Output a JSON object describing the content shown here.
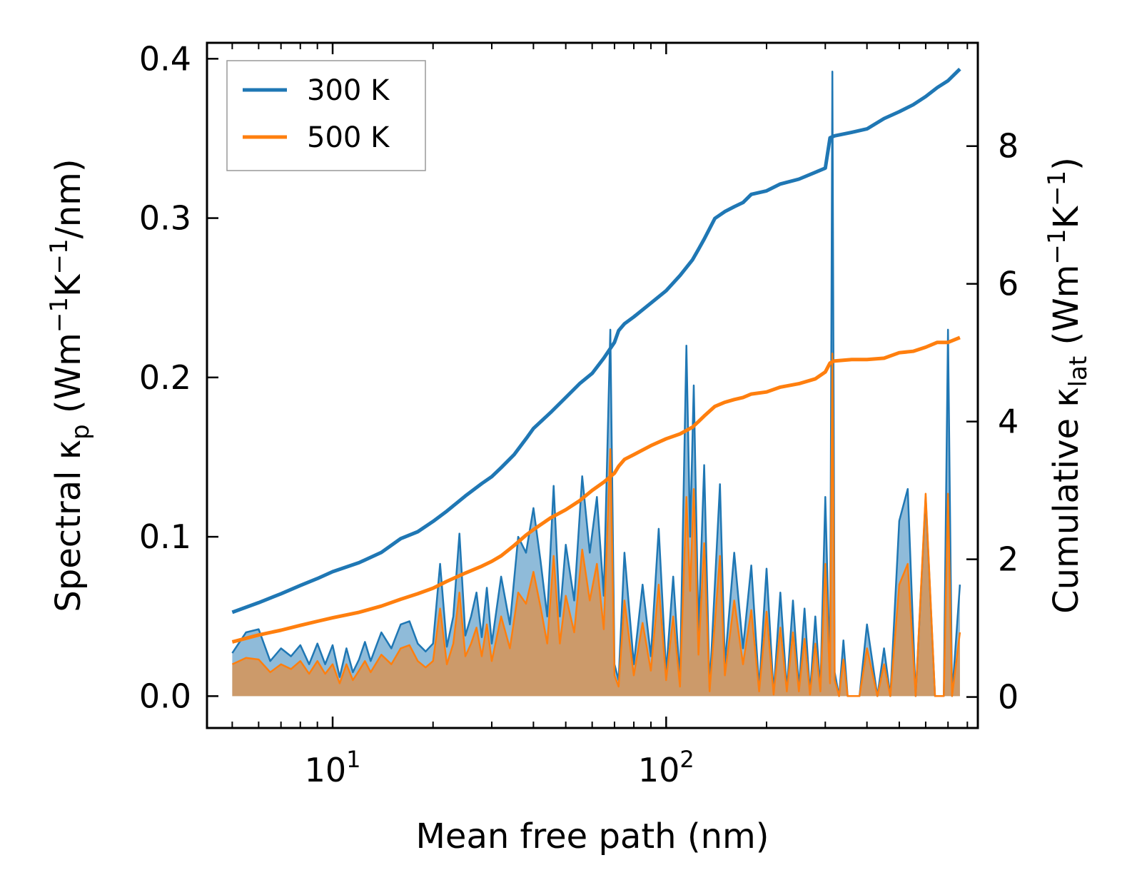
{
  "chart_data": {
    "type": "line",
    "xlabel": "Mean free path (nm)",
    "ylabel_left": {
      "prefix": "Spectral κ",
      "sub": "p",
      "suffix": " (Wm",
      "sup1": "−1",
      "mid": "K",
      "sup2": "−1",
      "end": "/nm)"
    },
    "ylabel_right": {
      "prefix": "Cumulative κ",
      "sub": "lat",
      "suffix": " (Wm",
      "sup1": "−1",
      "mid": "K",
      "sup2": "−1",
      "end": ")"
    },
    "xscale": "log",
    "xlim": [
      4.2,
      860
    ],
    "ylim_left": [
      -0.02,
      0.41
    ],
    "ylim_right": [
      -0.45,
      9.5
    ],
    "x_ticks": [
      {
        "value": 10,
        "base": "10",
        "exp": "1"
      },
      {
        "value": 100,
        "base": "10",
        "exp": "2"
      }
    ],
    "y_left_ticks": [
      {
        "value": 0.0,
        "label": "0.0"
      },
      {
        "value": 0.1,
        "label": "0.1"
      },
      {
        "value": 0.2,
        "label": "0.2"
      },
      {
        "value": 0.3,
        "label": "0.3"
      },
      {
        "value": 0.4,
        "label": "0.4"
      }
    ],
    "y_right_ticks": [
      {
        "value": 0,
        "label": "0"
      },
      {
        "value": 2,
        "label": "2"
      },
      {
        "value": 4,
        "label": "4"
      },
      {
        "value": 6,
        "label": "6"
      },
      {
        "value": 8,
        "label": "8"
      }
    ],
    "legend": {
      "position": "top-left",
      "entries": [
        "300 K",
        "500 K"
      ]
    },
    "colors": {
      "t300": "#1f77b4",
      "t500": "#ff7f0e"
    },
    "spectral_x": [
      5,
      5.5,
      6,
      6.5,
      7,
      7.5,
      8,
      8.5,
      9,
      9.5,
      10,
      10.5,
      11,
      11.5,
      12,
      12.5,
      13,
      14,
      15,
      16,
      17,
      18,
      19,
      20,
      21,
      22,
      23,
      24,
      25,
      26,
      27,
      28,
      29,
      30,
      32,
      34,
      36,
      38,
      40,
      42,
      44,
      46,
      48,
      50,
      53,
      56,
      59,
      62,
      65,
      68,
      70,
      72,
      75,
      80,
      85,
      90,
      95,
      100,
      105,
      110,
      115,
      118,
      121,
      125,
      130,
      135,
      140,
      145,
      150,
      160,
      170,
      180,
      190,
      200,
      210,
      220,
      230,
      240,
      250,
      260,
      270,
      280,
      290,
      300,
      310,
      315,
      320,
      330,
      340,
      350,
      360,
      380,
      400,
      430,
      450,
      470,
      500,
      530,
      560,
      600,
      640,
      680,
      700,
      720,
      760
    ],
    "series": [
      {
        "name": "300 K",
        "spectral": [
          0.027,
          0.04,
          0.042,
          0.022,
          0.03,
          0.025,
          0.032,
          0.02,
          0.033,
          0.02,
          0.032,
          0.012,
          0.03,
          0.015,
          0.023,
          0.034,
          0.022,
          0.04,
          0.03,
          0.045,
          0.047,
          0.033,
          0.028,
          0.033,
          0.083,
          0.031,
          0.05,
          0.102,
          0.038,
          0.05,
          0.065,
          0.037,
          0.068,
          0.033,
          0.075,
          0.045,
          0.1,
          0.09,
          0.118,
          0.085,
          0.05,
          0.132,
          0.05,
          0.095,
          0.06,
          0.138,
          0.09,
          0.125,
          0.063,
          0.23,
          0.02,
          0.01,
          0.09,
          0.02,
          0.07,
          0.025,
          0.105,
          0.015,
          0.075,
          0.01,
          0.22,
          0.1,
          0.195,
          0.04,
          0.145,
          0.005,
          0.07,
          0.133,
          0.02,
          0.09,
          0.03,
          0.082,
          0.005,
          0.08,
          0.002,
          0.065,
          0.004,
          0.06,
          0.005,
          0.055,
          0.002,
          0.05,
          0.004,
          0.125,
          0.012,
          0.392,
          0.015,
          0.0,
          0.035,
          0.0,
          0.0,
          0.0,
          0.045,
          0.0,
          0.03,
          0.0,
          0.11,
          0.13,
          0.0,
          0.125,
          0.0,
          0.0,
          0.23,
          0.0,
          0.07
        ],
        "cum_x": [
          5,
          6,
          7,
          8,
          9,
          10,
          12,
          14,
          16,
          18,
          20,
          22,
          25,
          28,
          30,
          32,
          35,
          38,
          40,
          45,
          50,
          55,
          60,
          65,
          70,
          72,
          75,
          80,
          90,
          100,
          110,
          120,
          125,
          130,
          140,
          150,
          160,
          170,
          180,
          200,
          220,
          250,
          280,
          300,
          310,
          320,
          360,
          400,
          450,
          500,
          550,
          600,
          650,
          700,
          760
        ],
        "cumulative": [
          1.23,
          1.37,
          1.5,
          1.62,
          1.72,
          1.82,
          1.95,
          2.1,
          2.3,
          2.4,
          2.55,
          2.7,
          2.92,
          3.1,
          3.2,
          3.33,
          3.52,
          3.75,
          3.9,
          4.13,
          4.35,
          4.55,
          4.7,
          4.92,
          5.15,
          5.32,
          5.42,
          5.52,
          5.72,
          5.9,
          6.12,
          6.35,
          6.5,
          6.65,
          6.95,
          7.05,
          7.12,
          7.18,
          7.3,
          7.35,
          7.45,
          7.52,
          7.62,
          7.68,
          8.12,
          8.15,
          8.2,
          8.25,
          8.4,
          8.5,
          8.6,
          8.72,
          8.85,
          8.95,
          9.12
        ]
      },
      {
        "name": "500 K",
        "spectral": [
          0.02,
          0.024,
          0.023,
          0.015,
          0.02,
          0.017,
          0.022,
          0.014,
          0.022,
          0.014,
          0.02,
          0.008,
          0.02,
          0.01,
          0.016,
          0.022,
          0.015,
          0.026,
          0.02,
          0.03,
          0.032,
          0.022,
          0.018,
          0.022,
          0.055,
          0.02,
          0.033,
          0.065,
          0.025,
          0.033,
          0.043,
          0.025,
          0.045,
          0.022,
          0.05,
          0.03,
          0.065,
          0.058,
          0.078,
          0.056,
          0.033,
          0.088,
          0.033,
          0.063,
          0.04,
          0.092,
          0.06,
          0.083,
          0.042,
          0.155,
          0.013,
          0.006,
          0.06,
          0.013,
          0.046,
          0.016,
          0.07,
          0.01,
          0.05,
          0.006,
          0.125,
          0.066,
          0.13,
          0.026,
          0.096,
          0.003,
          0.046,
          0.088,
          0.013,
          0.06,
          0.02,
          0.054,
          0.003,
          0.053,
          0.001,
          0.043,
          0.003,
          0.04,
          0.003,
          0.036,
          0.001,
          0.033,
          0.003,
          0.083,
          0.008,
          0.215,
          0.01,
          0.0,
          0.023,
          0.0,
          0.0,
          0.0,
          0.03,
          0.0,
          0.02,
          0.0,
          0.07,
          0.083,
          0.0,
          0.127,
          0.0,
          0.0,
          0.127,
          0.0,
          0.04
        ],
        "cum_x": [
          5,
          6,
          7,
          8,
          9,
          10,
          12,
          14,
          16,
          18,
          20,
          22,
          25,
          28,
          30,
          32,
          35,
          38,
          40,
          45,
          50,
          55,
          60,
          65,
          70,
          72,
          75,
          80,
          90,
          100,
          110,
          120,
          125,
          130,
          140,
          150,
          160,
          170,
          180,
          200,
          220,
          250,
          280,
          300,
          310,
          320,
          360,
          400,
          450,
          500,
          550,
          600,
          650,
          700,
          760
        ],
        "cumulative": [
          0.8,
          0.9,
          0.97,
          1.04,
          1.1,
          1.15,
          1.23,
          1.32,
          1.42,
          1.5,
          1.58,
          1.68,
          1.8,
          1.9,
          1.97,
          2.05,
          2.2,
          2.35,
          2.43,
          2.6,
          2.72,
          2.85,
          3.0,
          3.12,
          3.25,
          3.35,
          3.45,
          3.52,
          3.65,
          3.75,
          3.82,
          3.92,
          4.0,
          4.08,
          4.22,
          4.28,
          4.32,
          4.35,
          4.4,
          4.43,
          4.5,
          4.55,
          4.62,
          4.72,
          4.85,
          4.88,
          4.9,
          4.9,
          4.92,
          5.0,
          5.02,
          5.08,
          5.15,
          5.15,
          5.22
        ]
      }
    ]
  }
}
